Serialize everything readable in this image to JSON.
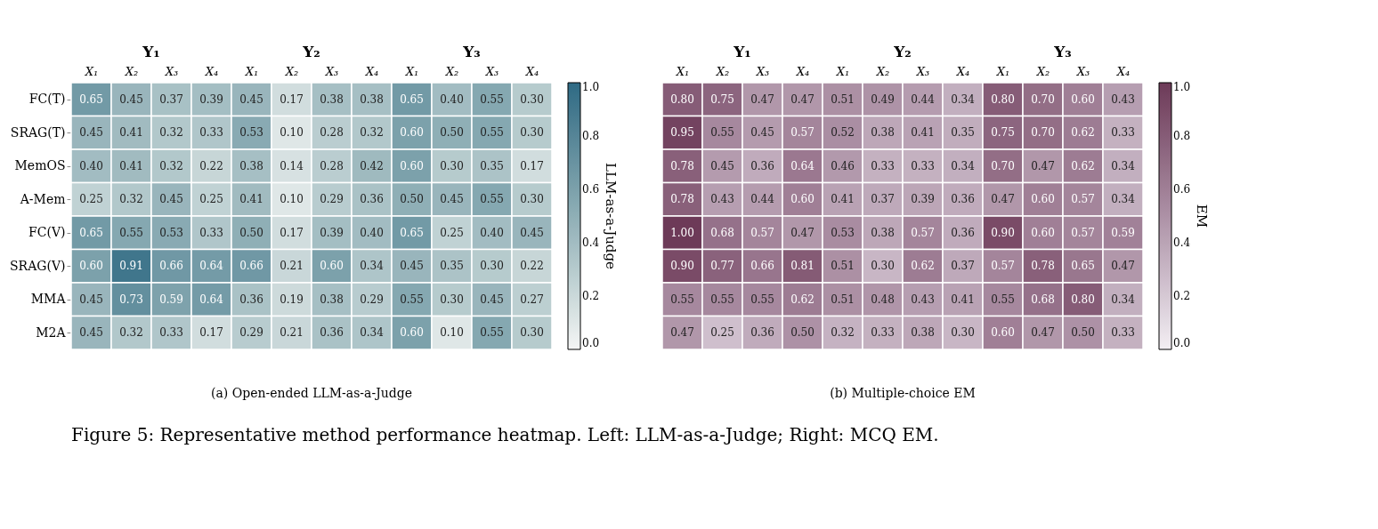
{
  "chart_data": [
    {
      "type": "heatmap",
      "xlabel": "(a) Open-ended LLM-as-a-Judge",
      "clabel": "LLM-as-a-Judge",
      "categories": [
        "X₁",
        "X₂",
        "X₃",
        "X₄",
        "X₁",
        "X₂",
        "X₃",
        "X₄",
        "X₁",
        "X₂",
        "X₃",
        "X₄"
      ],
      "y_categories": [
        "FC(T)",
        "SRAG(T)",
        "MemOS",
        "A-Mem",
        "FC(V)",
        "SRAG(V)",
        "MMA",
        "M2A"
      ],
      "cells": [
        [
          0.65,
          0.45,
          0.37,
          0.39,
          0.45,
          0.17,
          0.38,
          0.38,
          0.65,
          0.4,
          0.55,
          0.3
        ],
        [
          0.45,
          0.41,
          0.32,
          0.33,
          0.53,
          0.1,
          0.28,
          0.32,
          0.6,
          0.5,
          0.55,
          0.3
        ],
        [
          0.4,
          0.41,
          0.32,
          0.22,
          0.38,
          0.14,
          0.28,
          0.42,
          0.6,
          0.3,
          0.35,
          0.17
        ],
        [
          0.25,
          0.32,
          0.45,
          0.25,
          0.41,
          0.1,
          0.29,
          0.36,
          0.5,
          0.45,
          0.55,
          0.3
        ],
        [
          0.65,
          0.55,
          0.53,
          0.33,
          0.5,
          0.17,
          0.39,
          0.4,
          0.65,
          0.25,
          0.4,
          0.45
        ],
        [
          0.6,
          0.91,
          0.66,
          0.64,
          0.66,
          0.21,
          0.6,
          0.34,
          0.45,
          0.35,
          0.3,
          0.22
        ],
        [
          0.45,
          0.73,
          0.59,
          0.64,
          0.36,
          0.19,
          0.38,
          0.29,
          0.55,
          0.3,
          0.45,
          0.27
        ],
        [
          0.45,
          0.32,
          0.33,
          0.17,
          0.29,
          0.21,
          0.36,
          0.34,
          0.6,
          0.1,
          0.55,
          0.3
        ]
      ],
      "cell_labels": [
        [
          "0.65",
          "0.45",
          "0.37",
          "0.39",
          "0.45",
          "0.17",
          "0.38",
          "0.38",
          "0.65",
          "0.40",
          "0.55",
          "0.30"
        ],
        [
          "0.45",
          "0.41",
          "0.32",
          "0.33",
          "0.53",
          "0.10",
          "0.28",
          "0.32",
          "0.60",
          "0.50",
          "0.55",
          "0.30"
        ],
        [
          "0.40",
          "0.41",
          "0.32",
          "0.22",
          "0.38",
          "0.14",
          "0.28",
          "0.42",
          "0.60",
          "0.30",
          "0.35",
          "0.17"
        ],
        [
          "0.25",
          "0.32",
          "0.45",
          "0.25",
          "0.41",
          "0.10",
          "0.29",
          "0.36",
          "0.50",
          "0.45",
          "0.55",
          "0.30"
        ],
        [
          "0.65",
          "0.55",
          "0.53",
          "0.33",
          "0.50",
          "0.17",
          "0.39",
          "0.40",
          "0.65",
          "0.25",
          "0.40",
          "0.45"
        ],
        [
          "0.60",
          "0.91",
          "0.66",
          "0.64",
          "0.66",
          "0.21",
          "0.60",
          "0.34",
          "0.45",
          "0.35",
          "0.30",
          "0.22"
        ],
        [
          "0.45",
          "0.73",
          "0.59",
          "0.64",
          "0.36",
          "0.19",
          "0.38",
          "0.29",
          "0.55",
          "0.30",
          "0.45",
          "0.27"
        ],
        [
          "0.45",
          "0.32",
          "0.33",
          "0.17",
          "0.29",
          "0.21",
          "0.36",
          "0.34",
          "0.60",
          "0.10",
          "0.55",
          "0.30"
        ]
      ],
      "colors": [
        "#f4f5f5",
        "#2e6a84"
      ],
      "clim": [
        0,
        1
      ],
      "cticks": [
        {
          "value": 0,
          "label": "0.0"
        },
        {
          "value": 0.2,
          "label": "0.2"
        },
        {
          "value": 0.4,
          "label": "0.4"
        },
        {
          "value": 0.6,
          "label": "0.6"
        },
        {
          "value": 0.8,
          "label": "0.8"
        },
        {
          "value": 1,
          "label": "1.0"
        }
      ],
      "annotations": [
        "Y₁",
        "Y₂",
        "Y₃"
      ]
    },
    {
      "type": "heatmap",
      "xlabel": "(b) Multiple-choice EM",
      "clabel": "EM",
      "tick_labels": "x",
      "y_categories": [
        null,
        null,
        null,
        null,
        null,
        null,
        null,
        null
      ],
      "categories": [
        "X₁",
        "X₂",
        "X₃",
        "X₄",
        "X₁",
        "X₂",
        "X₃",
        "X₄",
        "X₁",
        "X₂",
        "X₃",
        "X₄"
      ],
      "cells": [
        [
          0.8,
          0.75,
          0.47,
          0.47,
          0.51,
          0.49,
          0.44,
          0.34,
          0.8,
          0.7,
          0.6,
          0.43
        ],
        [
          0.95,
          0.55,
          0.45,
          0.57,
          0.52,
          0.38,
          0.41,
          0.35,
          0.75,
          0.7,
          0.62,
          0.33
        ],
        [
          0.78,
          0.45,
          0.36,
          0.64,
          0.46,
          0.33,
          0.33,
          0.34,
          0.7,
          0.47,
          0.62,
          0.34
        ],
        [
          0.78,
          0.43,
          0.44,
          0.6,
          0.41,
          0.37,
          0.39,
          0.36,
          0.47,
          0.6,
          0.57,
          0.34
        ],
        [
          1.0,
          0.68,
          0.57,
          0.47,
          0.53,
          0.38,
          0.57,
          0.36,
          0.9,
          0.6,
          0.57,
          0.59
        ],
        [
          0.9,
          0.77,
          0.66,
          0.81,
          0.51,
          0.3,
          0.62,
          0.37,
          0.57,
          0.78,
          0.65,
          0.47
        ],
        [
          0.55,
          0.55,
          0.55,
          0.62,
          0.51,
          0.48,
          0.43,
          0.41,
          0.55,
          0.68,
          0.8,
          0.34
        ],
        [
          0.47,
          0.25,
          0.36,
          0.5,
          0.32,
          0.33,
          0.38,
          0.3,
          0.6,
          0.47,
          0.5,
          0.33
        ]
      ],
      "cell_labels": [
        [
          "0.80",
          "0.75",
          "0.47",
          "0.47",
          "0.51",
          "0.49",
          "0.44",
          "0.34",
          "0.80",
          "0.70",
          "0.60",
          "0.43"
        ],
        [
          "0.95",
          "0.55",
          "0.45",
          "0.57",
          "0.52",
          "0.38",
          "0.41",
          "0.35",
          "0.75",
          "0.70",
          "0.62",
          "0.33"
        ],
        [
          "0.78",
          "0.45",
          "0.36",
          "0.64",
          "0.46",
          "0.33",
          "0.33",
          "0.34",
          "0.70",
          "0.47",
          "0.62",
          "0.34"
        ],
        [
          "0.78",
          "0.43",
          "0.44",
          "0.60",
          "0.41",
          "0.37",
          "0.39",
          "0.36",
          "0.47",
          "0.60",
          "0.57",
          "0.34"
        ],
        [
          "1.00",
          "0.68",
          "0.57",
          "0.47",
          "0.53",
          "0.38",
          "0.57",
          "0.36",
          "0.90",
          "0.60",
          "0.57",
          "0.59"
        ],
        [
          "0.90",
          "0.77",
          "0.66",
          "0.81",
          "0.51",
          "0.30",
          "0.62",
          "0.37",
          "0.57",
          "0.78",
          "0.65",
          "0.47"
        ],
        [
          "0.55",
          "0.55",
          "0.55",
          "0.62",
          "0.51",
          "0.48",
          "0.43",
          "0.41",
          "0.55",
          "0.68",
          "0.80",
          "0.34"
        ],
        [
          "0.47",
          "0.25",
          "0.36",
          "0.50",
          "0.32",
          "0.33",
          "0.38",
          "0.30",
          "0.60",
          "0.47",
          "0.50",
          "0.33"
        ]
      ],
      "colors": [
        "#f3eff3",
        "#6d3a58"
      ],
      "clim": [
        0,
        1
      ],
      "cticks": [
        {
          "value": 0,
          "label": "0.0"
        },
        {
          "value": 0.2,
          "label": "0.2"
        },
        {
          "value": 0.4,
          "label": "0.4"
        },
        {
          "value": 0.6,
          "label": "0.6"
        },
        {
          "value": 0.8,
          "label": "0.8"
        },
        {
          "value": 1,
          "label": "1.0"
        }
      ],
      "annotations": [
        "Y₁",
        "Y₂",
        "Y₃",
        "Figure 5: Representative method performance heatmap. Left: LLM-as-a-Judge; Right: MCQ EM."
      ]
    }
  ]
}
